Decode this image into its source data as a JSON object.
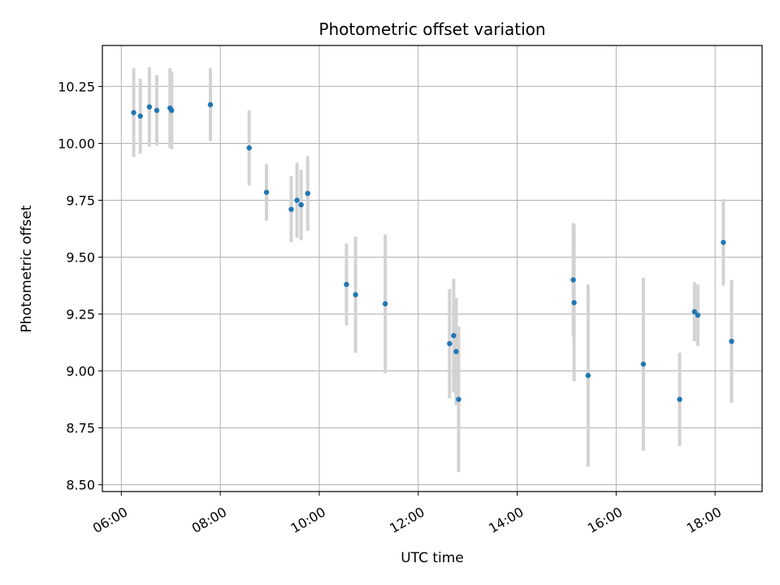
{
  "chart_data": {
    "type": "scatter",
    "title": "Photometric offset variation",
    "xlabel": "UTC time",
    "ylabel": "Photometric offset",
    "xlim": [
      "05:37",
      "18:57"
    ],
    "ylim": [
      8.47,
      10.43
    ],
    "grid": true,
    "x_ticks": [
      "06:00",
      "08:00",
      "10:00",
      "12:00",
      "14:00",
      "16:00",
      "18:00"
    ],
    "y_ticks": [
      "8.50",
      "8.75",
      "9.00",
      "9.25",
      "9.50",
      "9.75",
      "10.00",
      "10.25"
    ],
    "points": [
      {
        "x": "06:15",
        "y": 10.135,
        "err": 0.195
      },
      {
        "x": "06:23",
        "y": 10.12,
        "err": 0.165
      },
      {
        "x": "06:34",
        "y": 10.16,
        "err": 0.175
      },
      {
        "x": "06:43",
        "y": 10.145,
        "err": 0.155
      },
      {
        "x": "06:59",
        "y": 10.155,
        "err": 0.175
      },
      {
        "x": "07:01",
        "y": 10.145,
        "err": 0.17
      },
      {
        "x": "07:48",
        "y": 10.17,
        "err": 0.16
      },
      {
        "x": "08:35",
        "y": 9.98,
        "err": 0.165
      },
      {
        "x": "08:56",
        "y": 9.785,
        "err": 0.125
      },
      {
        "x": "09:26",
        "y": 9.71,
        "err": 0.145
      },
      {
        "x": "09:33",
        "y": 9.75,
        "err": 0.165
      },
      {
        "x": "09:38",
        "y": 9.73,
        "err": 0.155
      },
      {
        "x": "09:46",
        "y": 9.78,
        "err": 0.165
      },
      {
        "x": "10:33",
        "y": 9.38,
        "err": 0.18
      },
      {
        "x": "10:44",
        "y": 9.335,
        "err": 0.255
      },
      {
        "x": "11:20",
        "y": 9.295,
        "err": 0.305
      },
      {
        "x": "12:38",
        "y": 9.12,
        "err": 0.24
      },
      {
        "x": "12:43",
        "y": 9.155,
        "err": 0.25
      },
      {
        "x": "12:46",
        "y": 9.085,
        "err": 0.235
      },
      {
        "x": "12:49",
        "y": 8.875,
        "err": 0.32
      },
      {
        "x": "15:08",
        "y": 9.4,
        "err": 0.25
      },
      {
        "x": "15:09",
        "y": 9.3,
        "err": 0.345
      },
      {
        "x": "15:26",
        "y": 8.98,
        "err": 0.4
      },
      {
        "x": "16:33",
        "y": 9.03,
        "err": 0.38
      },
      {
        "x": "17:17",
        "y": 8.875,
        "err": 0.205
      },
      {
        "x": "17:35",
        "y": 9.26,
        "err": 0.13
      },
      {
        "x": "17:39",
        "y": 9.245,
        "err": 0.135
      },
      {
        "x": "18:10",
        "y": 9.565,
        "err": 0.19
      },
      {
        "x": "18:20",
        "y": 9.13,
        "err": 0.27
      }
    ],
    "colors": {
      "marker": "#1f77b4",
      "errorbar": "#d3d3d3",
      "grid": "#b0b0b0",
      "axes": "#000000"
    }
  }
}
